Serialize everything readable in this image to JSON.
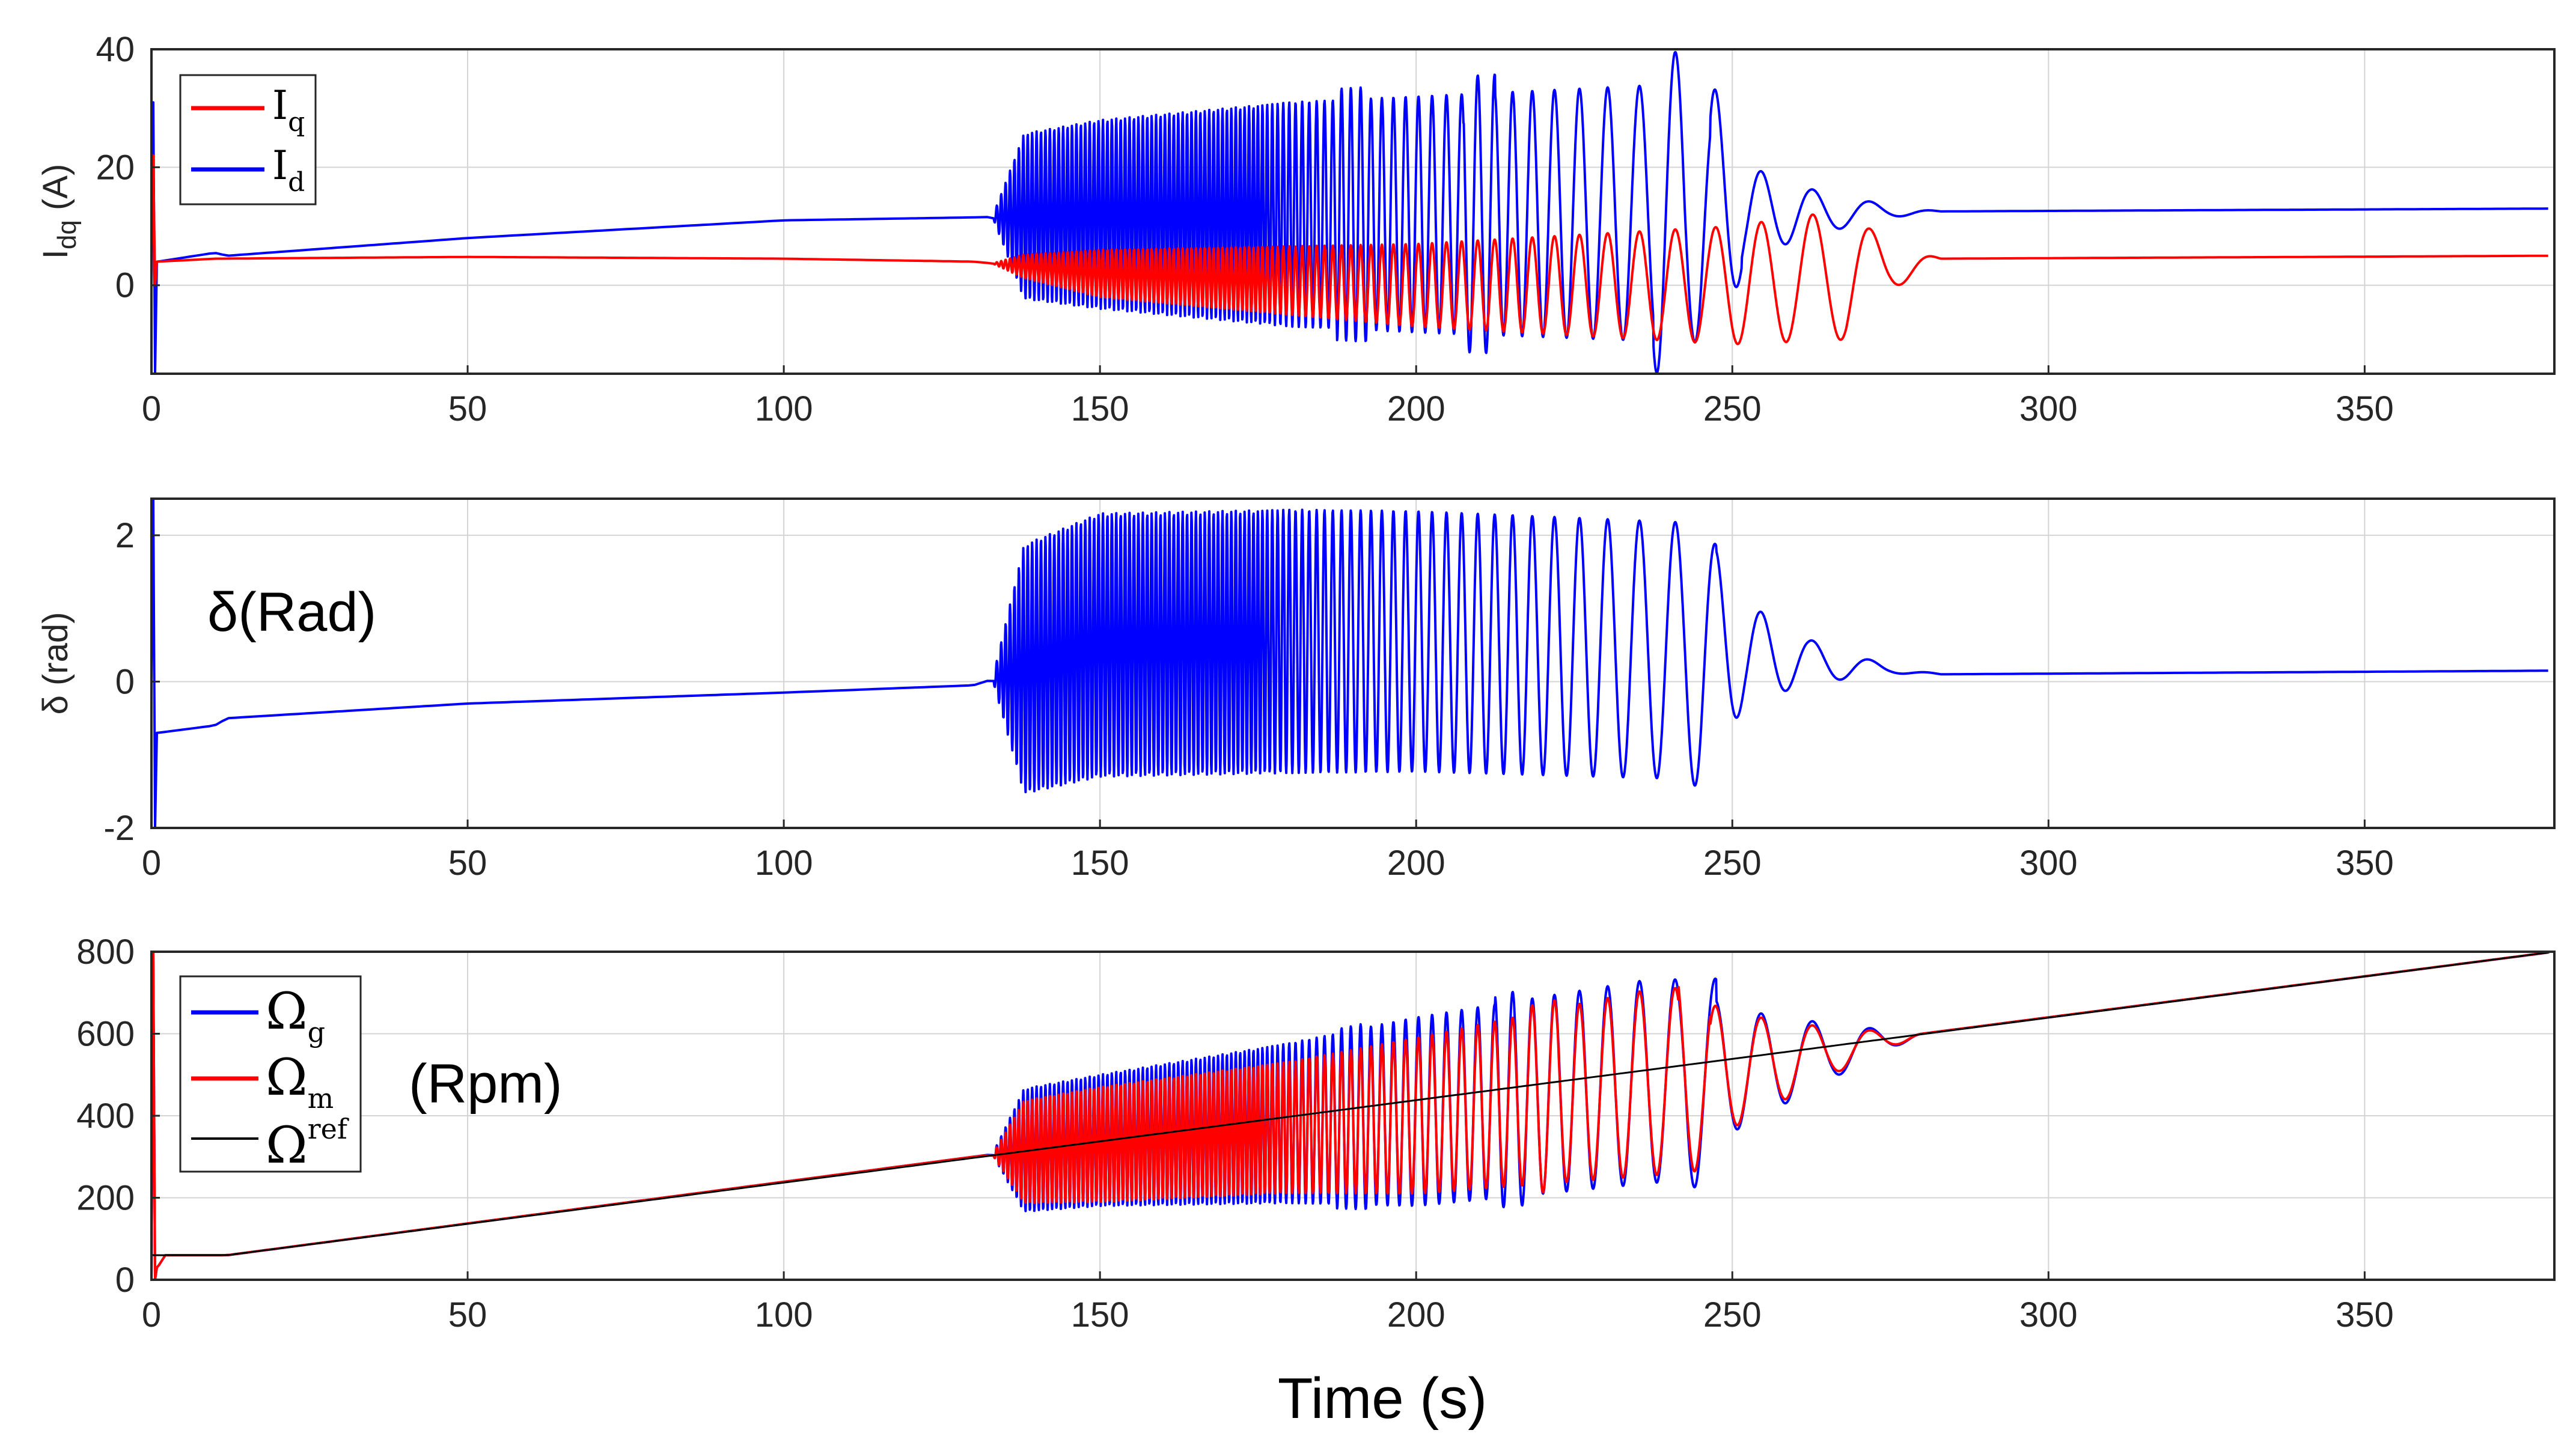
{
  "colors": {
    "blue": "#0000ff",
    "red": "#ff0000",
    "black": "#000000",
    "grid": "#d4d4d4"
  },
  "chart_data": {
    "type": "line",
    "xlabel": "Time (s)",
    "xlim": [
      0,
      380
    ],
    "xticks": [
      0,
      50,
      100,
      150,
      200,
      250,
      300,
      350
    ],
    "panels": [
      {
        "id": "idq",
        "ylabel_main": "I",
        "ylabel_sub": "dq",
        "ylabel_unit": " (A)",
        "ylim": [
          -15,
          40
        ],
        "yticks": [
          0,
          20,
          40
        ],
        "legend": [
          {
            "name": "I",
            "sub": "q",
            "color": "#ff0000"
          },
          {
            "name": "I",
            "sub": "d",
            "color": "#0000ff"
          }
        ],
        "series": [
          {
            "name": "Id",
            "color": "#0000ff",
            "center": [
              [
                0,
                0
              ],
              [
                1,
                4
              ],
              [
                10,
                5.5
              ],
              [
                12,
                5
              ],
              [
                50,
                8
              ],
              [
                100,
                11
              ],
              [
                130,
                11.5
              ],
              [
                150,
                12
              ],
              [
                200,
                12
              ],
              [
                280,
                12.5
              ],
              [
                380,
                13
              ]
            ],
            "envelope": [
              [
                130,
                0
              ],
              [
                133,
                0
              ],
              [
                138,
                14
              ],
              [
                150,
                16
              ],
              [
                180,
                19
              ],
              [
                200,
                20
              ],
              [
                245,
                22
              ],
              [
                252,
                8
              ],
              [
                262,
                4
              ],
              [
                275,
                1
              ],
              [
                283,
                0
              ],
              [
                380,
                0
              ]
            ],
            "bursts": [
              [
                190,
                0,
                1.1
              ],
              [
                210,
                0,
                1.15
              ],
              [
                240,
                0,
                1.25
              ],
              [
                249,
                0,
                1.2
              ]
            ],
            "start_spike": [
              31,
              -15
            ]
          },
          {
            "name": "Iq",
            "color": "#ff0000",
            "center": [
              [
                0,
                0
              ],
              [
                1,
                4
              ],
              [
                10,
                4.5
              ],
              [
                50,
                4.8
              ],
              [
                100,
                4.5
              ],
              [
                130,
                4
              ],
              [
                150,
                2
              ],
              [
                200,
                0
              ],
              [
                250,
                0
              ],
              [
                270,
                2
              ],
              [
                283,
                4.5
              ],
              [
                380,
                5
              ]
            ],
            "envelope": [
              [
                130,
                0
              ],
              [
                133,
                0
              ],
              [
                138,
                2
              ],
              [
                150,
                4
              ],
              [
                200,
                7
              ],
              [
                250,
                10
              ],
              [
                268,
                11
              ],
              [
                275,
                4
              ],
              [
                283,
                0
              ],
              [
                380,
                0
              ]
            ],
            "bursts": [],
            "start_spike": [
              22,
              0
            ]
          }
        ]
      },
      {
        "id": "delta",
        "ylabel_main": "δ (rad)",
        "ylim": [
          -2,
          2.5
        ],
        "yticks": [
          -2,
          0,
          2
        ],
        "annotation": "δ(Rad)",
        "series": [
          {
            "name": "delta",
            "color": "#0000ff",
            "center": [
              [
                0,
                0
              ],
              [
                1,
                -0.7
              ],
              [
                10,
                -0.6
              ],
              [
                12,
                -0.5
              ],
              [
                50,
                -0.3
              ],
              [
                100,
                -0.15
              ],
              [
                130,
                -0.05
              ],
              [
                150,
                0.5
              ],
              [
                180,
                0.55
              ],
              [
                200,
                0.55
              ],
              [
                250,
                0.4
              ],
              [
                270,
                0.2
              ],
              [
                283,
                0.1
              ],
              [
                380,
                0.15
              ]
            ],
            "envelope": [
              [
                130,
                0
              ],
              [
                133,
                0
              ],
              [
                138,
                1.7
              ],
              [
                150,
                1.8
              ],
              [
                180,
                1.8
              ],
              [
                200,
                1.78
              ],
              [
                245,
                1.75
              ],
              [
                252,
                0.7
              ],
              [
                262,
                0.3
              ],
              [
                275,
                0.05
              ],
              [
                283,
                0
              ],
              [
                380,
                0
              ]
            ],
            "bursts": [
              [
                193,
                0,
                1.0
              ],
              [
                245,
                0,
                1.05
              ]
            ],
            "start_spike": [
              2.5,
              -2
            ]
          }
        ]
      },
      {
        "id": "speed",
        "ylabel_main": "",
        "ylim": [
          0,
          800
        ],
        "yticks": [
          0,
          200,
          400,
          600,
          800
        ],
        "annotation": "(Rpm)",
        "legend": [
          {
            "name": "Ω",
            "sub": "g",
            "color": "#0000ff"
          },
          {
            "name": "Ω",
            "sub": "m",
            "color": "#ff0000"
          },
          {
            "name": "Ω",
            "sup": "ref",
            "color": "#000000"
          }
        ],
        "series": [
          {
            "name": "Omega_g",
            "color": "#0000ff",
            "center": [
              [
                0,
                0
              ],
              [
                2,
                60
              ],
              [
                12,
                60
              ],
              [
                130,
                300
              ],
              [
                150,
                340
              ],
              [
                200,
                410
              ],
              [
                250,
                510
              ],
              [
                280,
                600
              ],
              [
                380,
                800
              ]
            ],
            "envelope": [
              [
                130,
                0
              ],
              [
                133,
                0
              ],
              [
                138,
                150
              ],
              [
                150,
                160
              ],
              [
                180,
                195
              ],
              [
                200,
                230
              ],
              [
                240,
                250
              ],
              [
                250,
                150
              ],
              [
                265,
                70
              ],
              [
                280,
                0
              ],
              [
                380,
                0
              ]
            ],
            "bursts": [
              [
                190,
                0,
                1.05
              ],
              [
                215,
                0,
                1.1
              ],
              [
                245,
                0,
                1.3
              ]
            ],
            "start_spike": [
              800,
              0
            ]
          },
          {
            "name": "Omega_m",
            "color": "#ff0000",
            "center": [
              [
                0,
                0
              ],
              [
                2,
                60
              ],
              [
                12,
                60
              ],
              [
                130,
                300
              ],
              [
                150,
                330
              ],
              [
                200,
                400
              ],
              [
                250,
                510
              ],
              [
                280,
                600
              ],
              [
                380,
                800
              ]
            ],
            "envelope": [
              [
                130,
                0
              ],
              [
                133,
                0
              ],
              [
                138,
                125
              ],
              [
                150,
                140
              ],
              [
                180,
                160
              ],
              [
                200,
                190
              ],
              [
                240,
                230
              ],
              [
                250,
                140
              ],
              [
                265,
                60
              ],
              [
                280,
                0
              ],
              [
                380,
                0
              ]
            ],
            "bursts": [
              [
                220,
                0,
                1.1
              ],
              [
                244,
                0,
                1.2
              ]
            ],
            "start_spike": [
              800,
              0
            ]
          },
          {
            "name": "Omega_ref",
            "color": "#000000",
            "center": [
              [
                0,
                60
              ],
              [
                12,
                60
              ],
              [
                380,
                800
              ]
            ],
            "envelope": [
              [
                0,
                0
              ],
              [
                380,
                0
              ]
            ],
            "bursts": [],
            "start_spike": null
          }
        ]
      }
    ]
  }
}
